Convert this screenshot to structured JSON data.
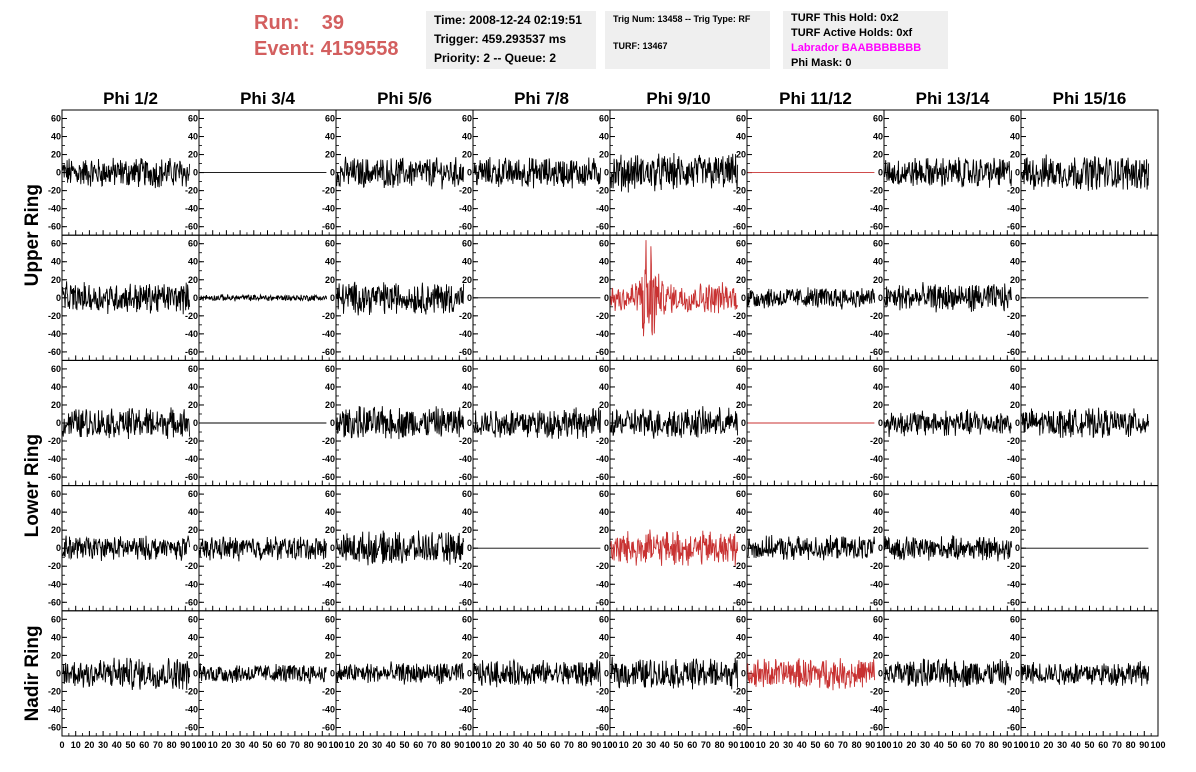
{
  "header": {
    "run_label": "Run:",
    "run_value": "39",
    "event_label": "Event:",
    "event_value": "4159558"
  },
  "info": {
    "time": "Time: 2008-12-24 02:19:51",
    "trigger": "Trigger: 459.293537 ms",
    "priority": "Priority: 2 -- Queue: 2",
    "trig_num": "Trig Num: 13458 -- Trig Type: RF",
    "turf": "TURF: 13467",
    "turf_this_hold": "TURF This Hold: 0x2",
    "turf_active_holds": "TURF Active Holds: 0xf",
    "labrador": "Labrador BAABBBBBBB",
    "phi_mask": "Phi Mask: 0"
  },
  "colors": {
    "header_red": "#d35f5f",
    "labrador": "#ff00ff",
    "trace_black": "#000000",
    "trace_red": "#c83232"
  },
  "chart_data": {
    "type": "line",
    "columns": [
      "Phi 1/2",
      "Phi 3/4",
      "Phi 5/6",
      "Phi 7/8",
      "Phi 9/10",
      "Phi 11/12",
      "Phi 13/14",
      "Phi 15/16"
    ],
    "ring_labels": [
      "Upper Ring",
      "Lower Ring",
      "Nadir Ring"
    ],
    "ylim": [
      -65,
      65
    ],
    "yticks": [
      -60,
      -40,
      -20,
      0,
      20,
      40,
      60
    ],
    "xlim": [
      0,
      100
    ],
    "xticks": [
      0,
      10,
      20,
      30,
      40,
      50,
      60,
      70,
      80,
      90,
      100
    ],
    "rows": [
      {
        "ring": "Upper Ring",
        "panels": [
          {
            "col": "Phi 1/2",
            "amp": 14,
            "color": "black"
          },
          {
            "col": "Phi 3/4",
            "amp": 0,
            "color": "black"
          },
          {
            "col": "Phi 5/6",
            "amp": 14,
            "color": "black"
          },
          {
            "col": "Phi 7/8",
            "amp": 14,
            "color": "black"
          },
          {
            "col": "Phi 9/10",
            "amp": 17,
            "color": "black"
          },
          {
            "col": "Phi 11/12",
            "amp": 0,
            "color": "red"
          },
          {
            "col": "Phi 13/14",
            "amp": 14,
            "color": "black"
          },
          {
            "col": "Phi 15/16",
            "amp": 16,
            "color": "black"
          }
        ]
      },
      {
        "ring": "Upper Ring",
        "panels": [
          {
            "col": "Phi 1/2",
            "amp": 14,
            "color": "black"
          },
          {
            "col": "Phi 3/4",
            "amp": 3,
            "color": "black"
          },
          {
            "col": "Phi 5/6",
            "amp": 15,
            "color": "black"
          },
          {
            "col": "Phi 7/8",
            "amp": 0,
            "color": "black"
          },
          {
            "col": "Phi 9/10",
            "amp": 14,
            "color": "red",
            "burst": true
          },
          {
            "col": "Phi 11/12",
            "amp": 10,
            "color": "black"
          },
          {
            "col": "Phi 13/14",
            "amp": 13,
            "color": "black"
          },
          {
            "col": "Phi 15/16",
            "amp": 0,
            "color": "black"
          }
        ]
      },
      {
        "ring": "Lower Ring",
        "panels": [
          {
            "col": "Phi 1/2",
            "amp": 14,
            "color": "black"
          },
          {
            "col": "Phi 3/4",
            "amp": 0,
            "color": "black"
          },
          {
            "col": "Phi 5/6",
            "amp": 15,
            "color": "black"
          },
          {
            "col": "Phi 7/8",
            "amp": 14,
            "color": "black"
          },
          {
            "col": "Phi 9/10",
            "amp": 14,
            "color": "black"
          },
          {
            "col": "Phi 11/12",
            "amp": 0,
            "color": "red"
          },
          {
            "col": "Phi 13/14",
            "amp": 12,
            "color": "black"
          },
          {
            "col": "Phi 15/16",
            "amp": 13,
            "color": "black"
          }
        ]
      },
      {
        "ring": "Lower Ring",
        "panels": [
          {
            "col": "Phi 1/2",
            "amp": 11,
            "color": "black"
          },
          {
            "col": "Phi 3/4",
            "amp": 11,
            "color": "black"
          },
          {
            "col": "Phi 5/6",
            "amp": 15,
            "color": "black"
          },
          {
            "col": "Phi 7/8",
            "amp": 0,
            "color": "black"
          },
          {
            "col": "Phi 9/10",
            "amp": 16,
            "color": "red"
          },
          {
            "col": "Phi 11/12",
            "amp": 11,
            "color": "black"
          },
          {
            "col": "Phi 13/14",
            "amp": 11,
            "color": "black"
          },
          {
            "col": "Phi 15/16",
            "amp": 0,
            "color": "black"
          }
        ]
      },
      {
        "ring": "Nadir Ring",
        "panels": [
          {
            "col": "Phi 1/2",
            "amp": 15,
            "color": "black"
          },
          {
            "col": "Phi 3/4",
            "amp": 9,
            "color": "black"
          },
          {
            "col": "Phi 5/6",
            "amp": 10,
            "color": "black"
          },
          {
            "col": "Phi 7/8",
            "amp": 12,
            "color": "black"
          },
          {
            "col": "Phi 9/10",
            "amp": 14,
            "color": "black"
          },
          {
            "col": "Phi 11/12",
            "amp": 14,
            "color": "red"
          },
          {
            "col": "Phi 13/14",
            "amp": 13,
            "color": "black"
          },
          {
            "col": "Phi 15/16",
            "amp": 11,
            "color": "black"
          }
        ]
      }
    ]
  }
}
